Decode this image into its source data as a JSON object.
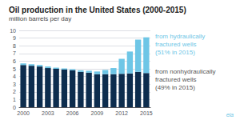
{
  "chart_data": {
    "type": "bar",
    "title": "Oil production in the United States (2000-2015)",
    "subtitle": "million barrels per day",
    "categories": [
      "2000",
      null,
      null,
      "2003",
      null,
      null,
      "2006",
      null,
      null,
      "2009",
      null,
      null,
      "2012",
      null,
      null,
      "2015"
    ],
    "series": [
      {
        "color": "#0d2d4e",
        "values": [
          5.5,
          5.4,
          5.3,
          5.1,
          5.0,
          4.9,
          4.8,
          4.6,
          4.5,
          4.3,
          4.3,
          4.3,
          4.35,
          4.4,
          4.6,
          4.45
        ]
      },
      {
        "color": "#6ec6e6",
        "values": [
          0.2,
          0.2,
          0.2,
          0.2,
          0.15,
          0.15,
          0.15,
          0.2,
          0.25,
          0.35,
          0.55,
          0.8,
          1.95,
          2.85,
          4.2,
          4.65
        ]
      }
    ],
    "stacked": true,
    "ylim": [
      0,
      10
    ],
    "yticks": [
      0,
      1,
      2,
      3,
      4,
      5,
      6,
      7,
      8,
      9,
      10
    ],
    "grid": true,
    "annotations": [
      {
        "text": "from hydraulically\nfractured wells\n(51% in 2015)",
        "color": "#6ec6e6"
      },
      {
        "text": "from nonhydraulically\nfractured wells\n(49% in 2015)",
        "color": "#555555"
      },
      {
        "text": "eia",
        "color": "#6ec6e6"
      }
    ]
  }
}
